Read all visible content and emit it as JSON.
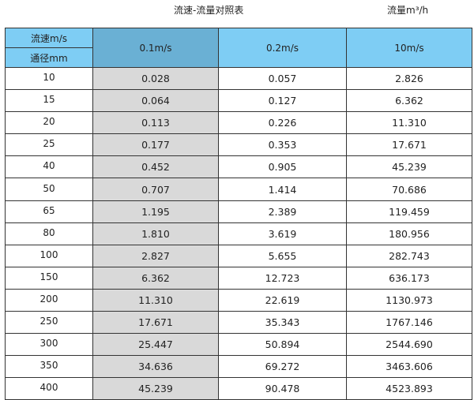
{
  "title": "流速-流量对照表",
  "unit_label": "流量m³/h",
  "colors": {
    "header": "#7ecdf4",
    "header_highlight": "#6ab0d4",
    "highlight_column": "#d9d9d9"
  },
  "table": {
    "header": {
      "velocity_label": "流速m/s",
      "diameter_label": "通径mm",
      "columns": [
        "0.1m/s",
        "0.2m/s",
        "10m/s"
      ]
    },
    "rows": [
      [
        "10",
        "0.028",
        "0.057",
        "2.826"
      ],
      [
        "15",
        "0.064",
        "0.127",
        "6.362"
      ],
      [
        "20",
        "0.113",
        "0.226",
        "11.310"
      ],
      [
        "25",
        "0.177",
        "0.353",
        "17.671"
      ],
      [
        "40",
        "0.452",
        "0.905",
        "45.239"
      ],
      [
        "50",
        "0.707",
        "1.414",
        "70.686"
      ],
      [
        "65",
        "1.195",
        "2.389",
        "119.459"
      ],
      [
        "80",
        "1.810",
        "3.619",
        "180.956"
      ],
      [
        "100",
        "2.827",
        "5.655",
        "282.743"
      ],
      [
        "150",
        "6.362",
        "12.723",
        "636.173"
      ],
      [
        "200",
        "11.310",
        "22.619",
        "1130.973"
      ],
      [
        "250",
        "17.671",
        "35.343",
        "1767.146"
      ],
      [
        "300",
        "25.447",
        "50.894",
        "2544.690"
      ],
      [
        "350",
        "34.636",
        "69.272",
        "3463.606"
      ],
      [
        "400",
        "45.239",
        "90.478",
        "4523.893"
      ]
    ]
  }
}
